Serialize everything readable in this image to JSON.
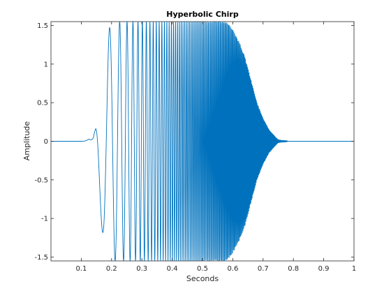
{
  "chart_data": {
    "type": "line",
    "title": "Hyperbolic Chirp",
    "xlabel": "Seconds",
    "ylabel": "Amplitude",
    "xlim": [
      0,
      1
    ],
    "ylim": [
      -1.55,
      1.55
    ],
    "xticks": [
      0.1,
      0.2,
      0.3,
      0.4,
      0.5,
      0.6,
      0.7,
      0.8,
      0.9,
      1
    ],
    "xtick_labels": [
      "0.1",
      "0.2",
      "0.3",
      "0.4",
      "0.5",
      "0.6",
      "0.7",
      "0.8",
      "0.9",
      "1"
    ],
    "yticks": [
      -1.5,
      -1,
      -0.5,
      0,
      0.5,
      1,
      1.5
    ],
    "ytick_labels": [
      "-1.5",
      "-1",
      "-0.5",
      "0",
      "0.5",
      "1",
      "1.5"
    ],
    "grid": false,
    "line_color": "#0072bd",
    "series": [
      {
        "x": [
          0,
          0.08,
          0.1,
          0.11,
          0.12,
          0.125,
          0.13,
          0.135,
          0.14,
          0.145,
          0.15,
          0.16,
          0.175,
          0.19,
          0.205,
          0.22,
          0.24,
          0.26,
          0.28,
          0.3,
          0.32,
          0.34,
          0.36,
          0.38,
          0.4,
          0.42,
          0.44,
          0.46,
          0.48,
          0.5,
          0.52,
          0.54,
          0.56,
          0.58,
          0.6,
          0.62,
          0.64,
          0.66,
          0.68,
          0.7,
          0.72,
          0.74,
          0.75,
          0.76,
          0.8,
          1.0
        ],
        "y": [
          0,
          0,
          0,
          -0.005,
          -0.02,
          -0.03,
          -0.02,
          0.02,
          0.05,
          -0.2,
          -0.47,
          0.92,
          -1.3,
          1.45,
          -1.55,
          1.55,
          -1.55,
          1.55,
          -1.55,
          1.55,
          -1.55,
          1.55,
          -1.55,
          1.55,
          -1.55,
          1.55,
          -1.55,
          1.55,
          -1.55,
          1.55,
          -1.55,
          1.55,
          -1.55,
          1.55,
          -1.45,
          1.3,
          -1.1,
          0.8,
          -0.5,
          0.3,
          -0.15,
          0.06,
          -0.02,
          0.01,
          0,
          0
        ]
      }
    ]
  }
}
